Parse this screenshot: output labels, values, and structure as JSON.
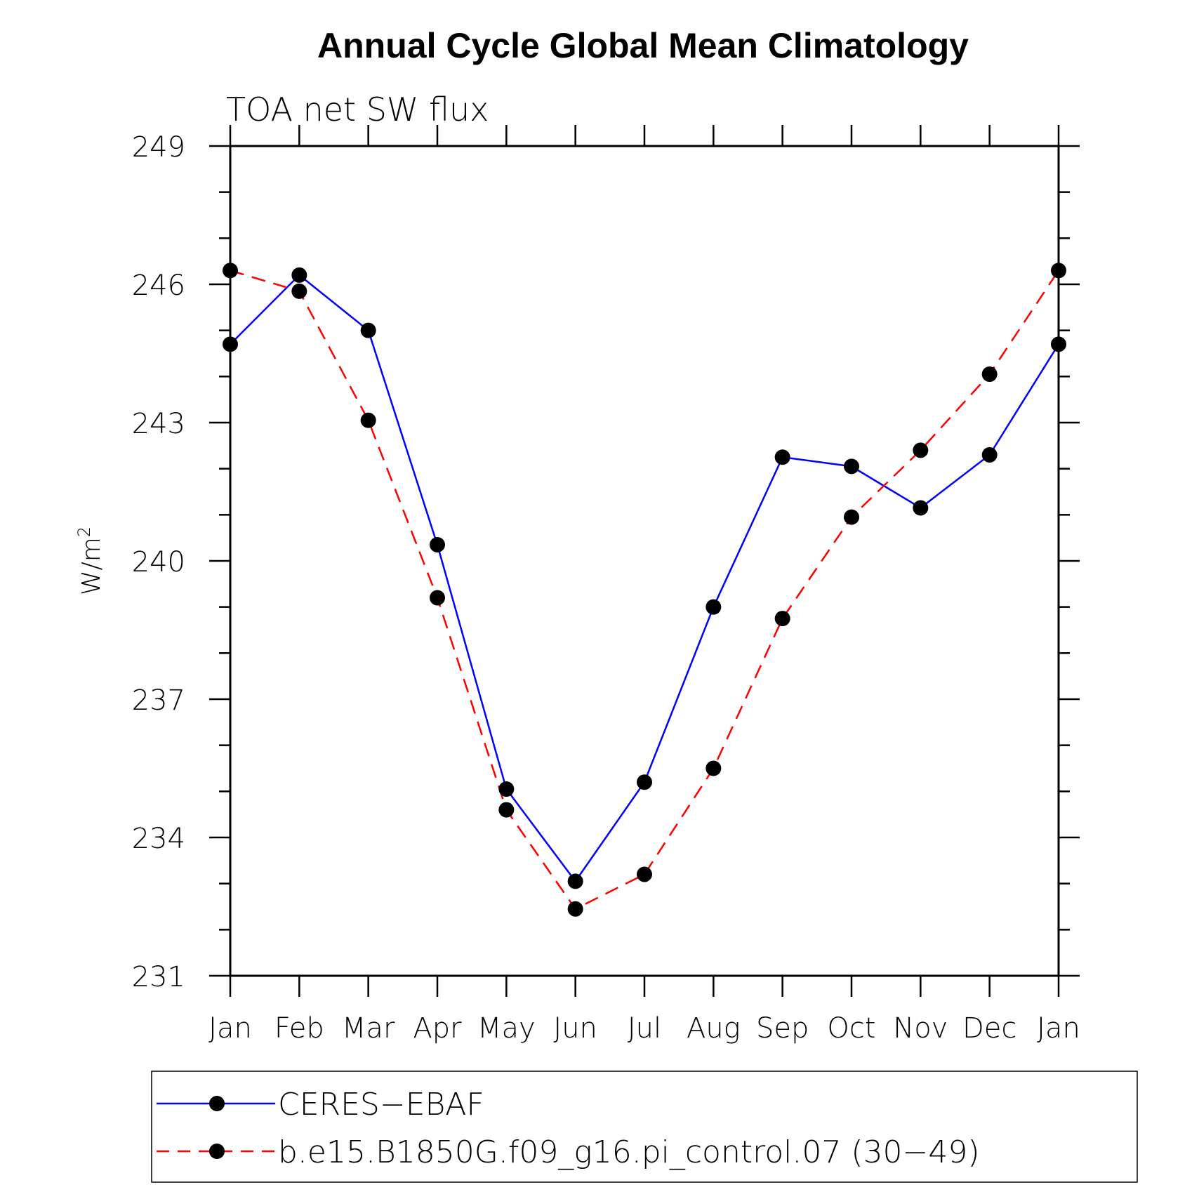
{
  "chart_data": {
    "type": "line",
    "title": "Annual Cycle Global Mean Climatology",
    "subtitle": "TOA net SW flux",
    "ylabel": "W/m",
    "ylabel_sup": "2",
    "xlabel": "",
    "ylim": [
      231,
      249
    ],
    "yticks": [
      "231",
      "234",
      "237",
      "240",
      "243",
      "246",
      "249"
    ],
    "categories": [
      "Jan",
      "Feb",
      "Mar",
      "Apr",
      "May",
      "Jun",
      "Jul",
      "Aug",
      "Sep",
      "Oct",
      "Nov",
      "Dec",
      "Jan"
    ],
    "series": [
      {
        "name": "CERES−EBAF",
        "color": "#0000ff",
        "dash": "solid",
        "values": [
          244.7,
          246.2,
          245.0,
          240.35,
          235.05,
          233.05,
          235.2,
          239.0,
          242.25,
          242.05,
          241.15,
          242.3,
          244.7
        ]
      },
      {
        "name": "b.e15.B1850G.f09_g16.pi_control.07 (30−49)",
        "color": "#ff0000",
        "dash": "dashed",
        "values": [
          246.3,
          245.85,
          243.05,
          239.2,
          234.6,
          232.45,
          233.2,
          235.5,
          238.75,
          240.95,
          242.4,
          244.05,
          246.3
        ]
      }
    ]
  }
}
